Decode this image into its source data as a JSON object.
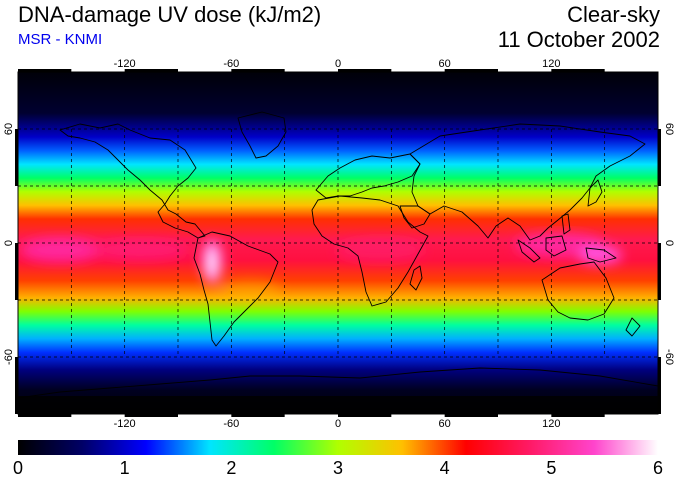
{
  "header": {
    "title": "DNA-damage UV dose (kJ/m2)",
    "subtitle": "MSR - KNMI",
    "condition": "Clear-sky",
    "date": "11 October 2002"
  },
  "map": {
    "projection": "equirectangular",
    "lon_ticks": [
      -120,
      -60,
      0,
      60,
      120
    ],
    "lon_tick_labels": [
      "-120",
      "-60",
      "0",
      "60",
      "120"
    ],
    "lat_ticks": [
      60,
      0,
      -60
    ],
    "lat_tick_labels": [
      "60",
      "0",
      "-60"
    ],
    "gridlines": {
      "lon": [
        -150,
        -120,
        -90,
        -60,
        -30,
        0,
        30,
        60,
        90,
        120,
        150
      ],
      "lat": [
        60,
        30,
        0,
        -30,
        -60
      ]
    },
    "colors": {
      "background": "#ffffff",
      "frame": "#000000"
    }
  },
  "colorbar": {
    "min": 0,
    "max": 6,
    "tick_labels": [
      "0",
      "1",
      "2",
      "3",
      "4",
      "5",
      "6"
    ],
    "stops": [
      "#000000",
      "#000066",
      "#0000ff",
      "#00e5ff",
      "#00ff66",
      "#b0ff00",
      "#ffc000",
      "#ff0000",
      "#ff1a66",
      "#ff44cc",
      "#ffffff"
    ]
  }
}
